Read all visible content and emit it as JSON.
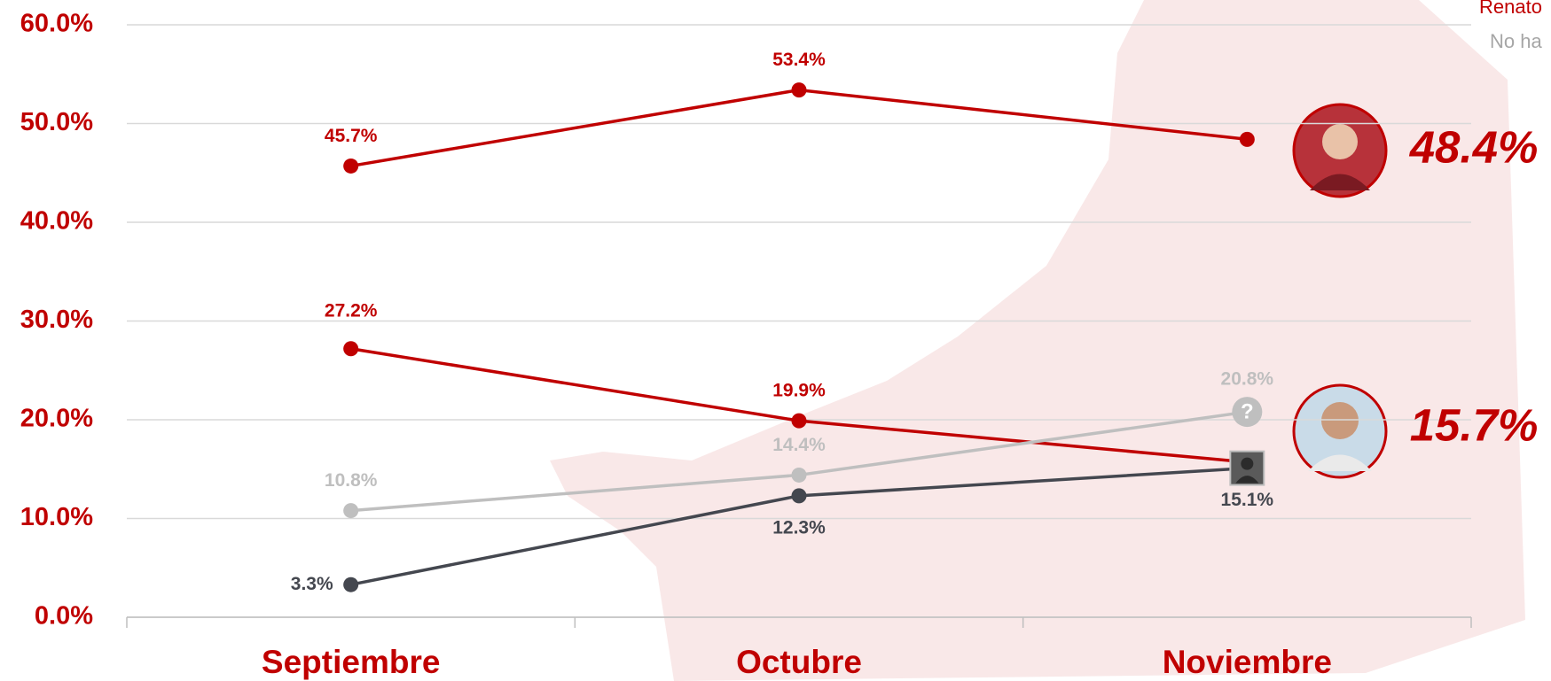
{
  "chart_data": {
    "type": "line",
    "categories": [
      "Septiembre",
      "Octubre",
      "Noviembre"
    ],
    "series": [
      {
        "color": "#c00000",
        "values": [
          45.7,
          53.4,
          48.4
        ],
        "value_labels": [
          "45.7%",
          "53.4%",
          "48.4%"
        ]
      },
      {
        "name": "Renato",
        "color": "#c00000",
        "values": [
          27.2,
          19.9,
          15.7
        ],
        "value_labels": [
          "27.2%",
          "19.9%",
          "15.7%"
        ]
      },
      {
        "name": "No ha",
        "color": "#bfbfbf",
        "values": [
          10.8,
          14.4,
          20.8
        ],
        "value_labels": [
          "10.8%",
          "14.4%",
          "20.8%"
        ]
      },
      {
        "color": "#44474f",
        "values": [
          3.3,
          12.3,
          15.1
        ],
        "value_labels": [
          "3.3%",
          "12.3%",
          "15.1%"
        ]
      }
    ],
    "ylim": [
      0,
      60
    ],
    "yticks": [
      {
        "value": 0,
        "label": "0.0%"
      },
      {
        "value": 10,
        "label": "10.0%"
      },
      {
        "value": 20,
        "label": "20.0%"
      },
      {
        "value": 30,
        "label": "30.0%"
      },
      {
        "value": 40,
        "label": "40.0%"
      },
      {
        "value": 50,
        "label": "50.0%"
      },
      {
        "value": 60,
        "label": "60.0%"
      }
    ],
    "grid": true
  }
}
